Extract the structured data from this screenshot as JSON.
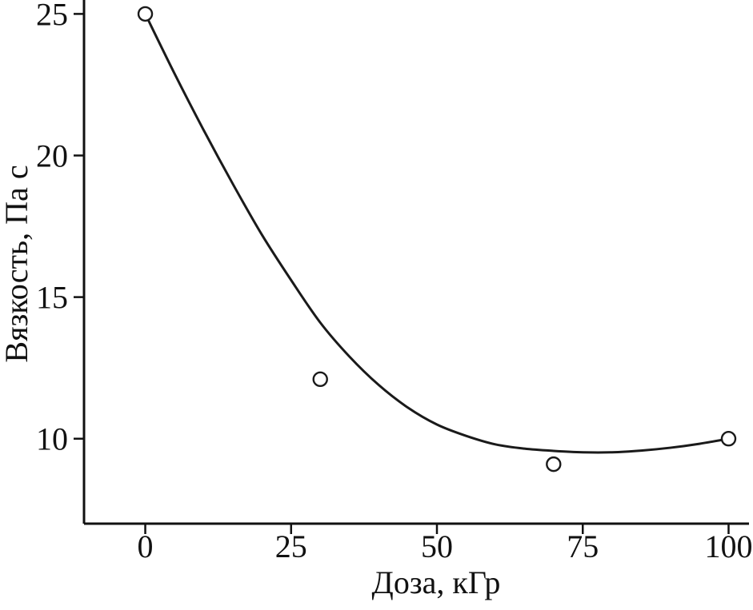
{
  "chart_data": {
    "type": "scatter",
    "title": "",
    "xlabel": "Доза, кГр",
    "ylabel": "Вязкость, Па с",
    "xlim": [
      -10.5,
      103.5
    ],
    "ylim": [
      7,
      25.35
    ],
    "x_ticks": [
      0,
      25,
      50,
      75,
      100
    ],
    "y_ticks": [
      10,
      15,
      20,
      25
    ],
    "grid": false,
    "legend": false,
    "series": [
      {
        "name": "measured-viscosity-points",
        "kind": "scatter",
        "marker": "open-circle",
        "points": [
          {
            "x": 0,
            "y": 25.0
          },
          {
            "x": 30,
            "y": 12.1
          },
          {
            "x": 70,
            "y": 9.1
          },
          {
            "x": 100,
            "y": 10.0
          }
        ]
      },
      {
        "name": "fit-curve",
        "kind": "line",
        "points": [
          {
            "x": 0,
            "y": 25.0
          },
          {
            "x": 5,
            "y": 22.9
          },
          {
            "x": 10,
            "y": 20.9
          },
          {
            "x": 15,
            "y": 19.0
          },
          {
            "x": 20,
            "y": 17.2
          },
          {
            "x": 25,
            "y": 15.6
          },
          {
            "x": 30,
            "y": 14.1
          },
          {
            "x": 35,
            "y": 12.9
          },
          {
            "x": 40,
            "y": 11.9
          },
          {
            "x": 45,
            "y": 11.1
          },
          {
            "x": 50,
            "y": 10.5
          },
          {
            "x": 55,
            "y": 10.1
          },
          {
            "x": 60,
            "y": 9.8
          },
          {
            "x": 65,
            "y": 9.65
          },
          {
            "x": 70,
            "y": 9.57
          },
          {
            "x": 75,
            "y": 9.52
          },
          {
            "x": 80,
            "y": 9.52
          },
          {
            "x": 85,
            "y": 9.58
          },
          {
            "x": 90,
            "y": 9.68
          },
          {
            "x": 95,
            "y": 9.82
          },
          {
            "x": 100,
            "y": 10.0
          }
        ]
      }
    ],
    "colors": {
      "axis": "#111111",
      "line": "#1a1a1a",
      "marker_stroke": "#1a1a1a",
      "marker_fill": "#ffffff",
      "background": "#ffffff"
    }
  }
}
